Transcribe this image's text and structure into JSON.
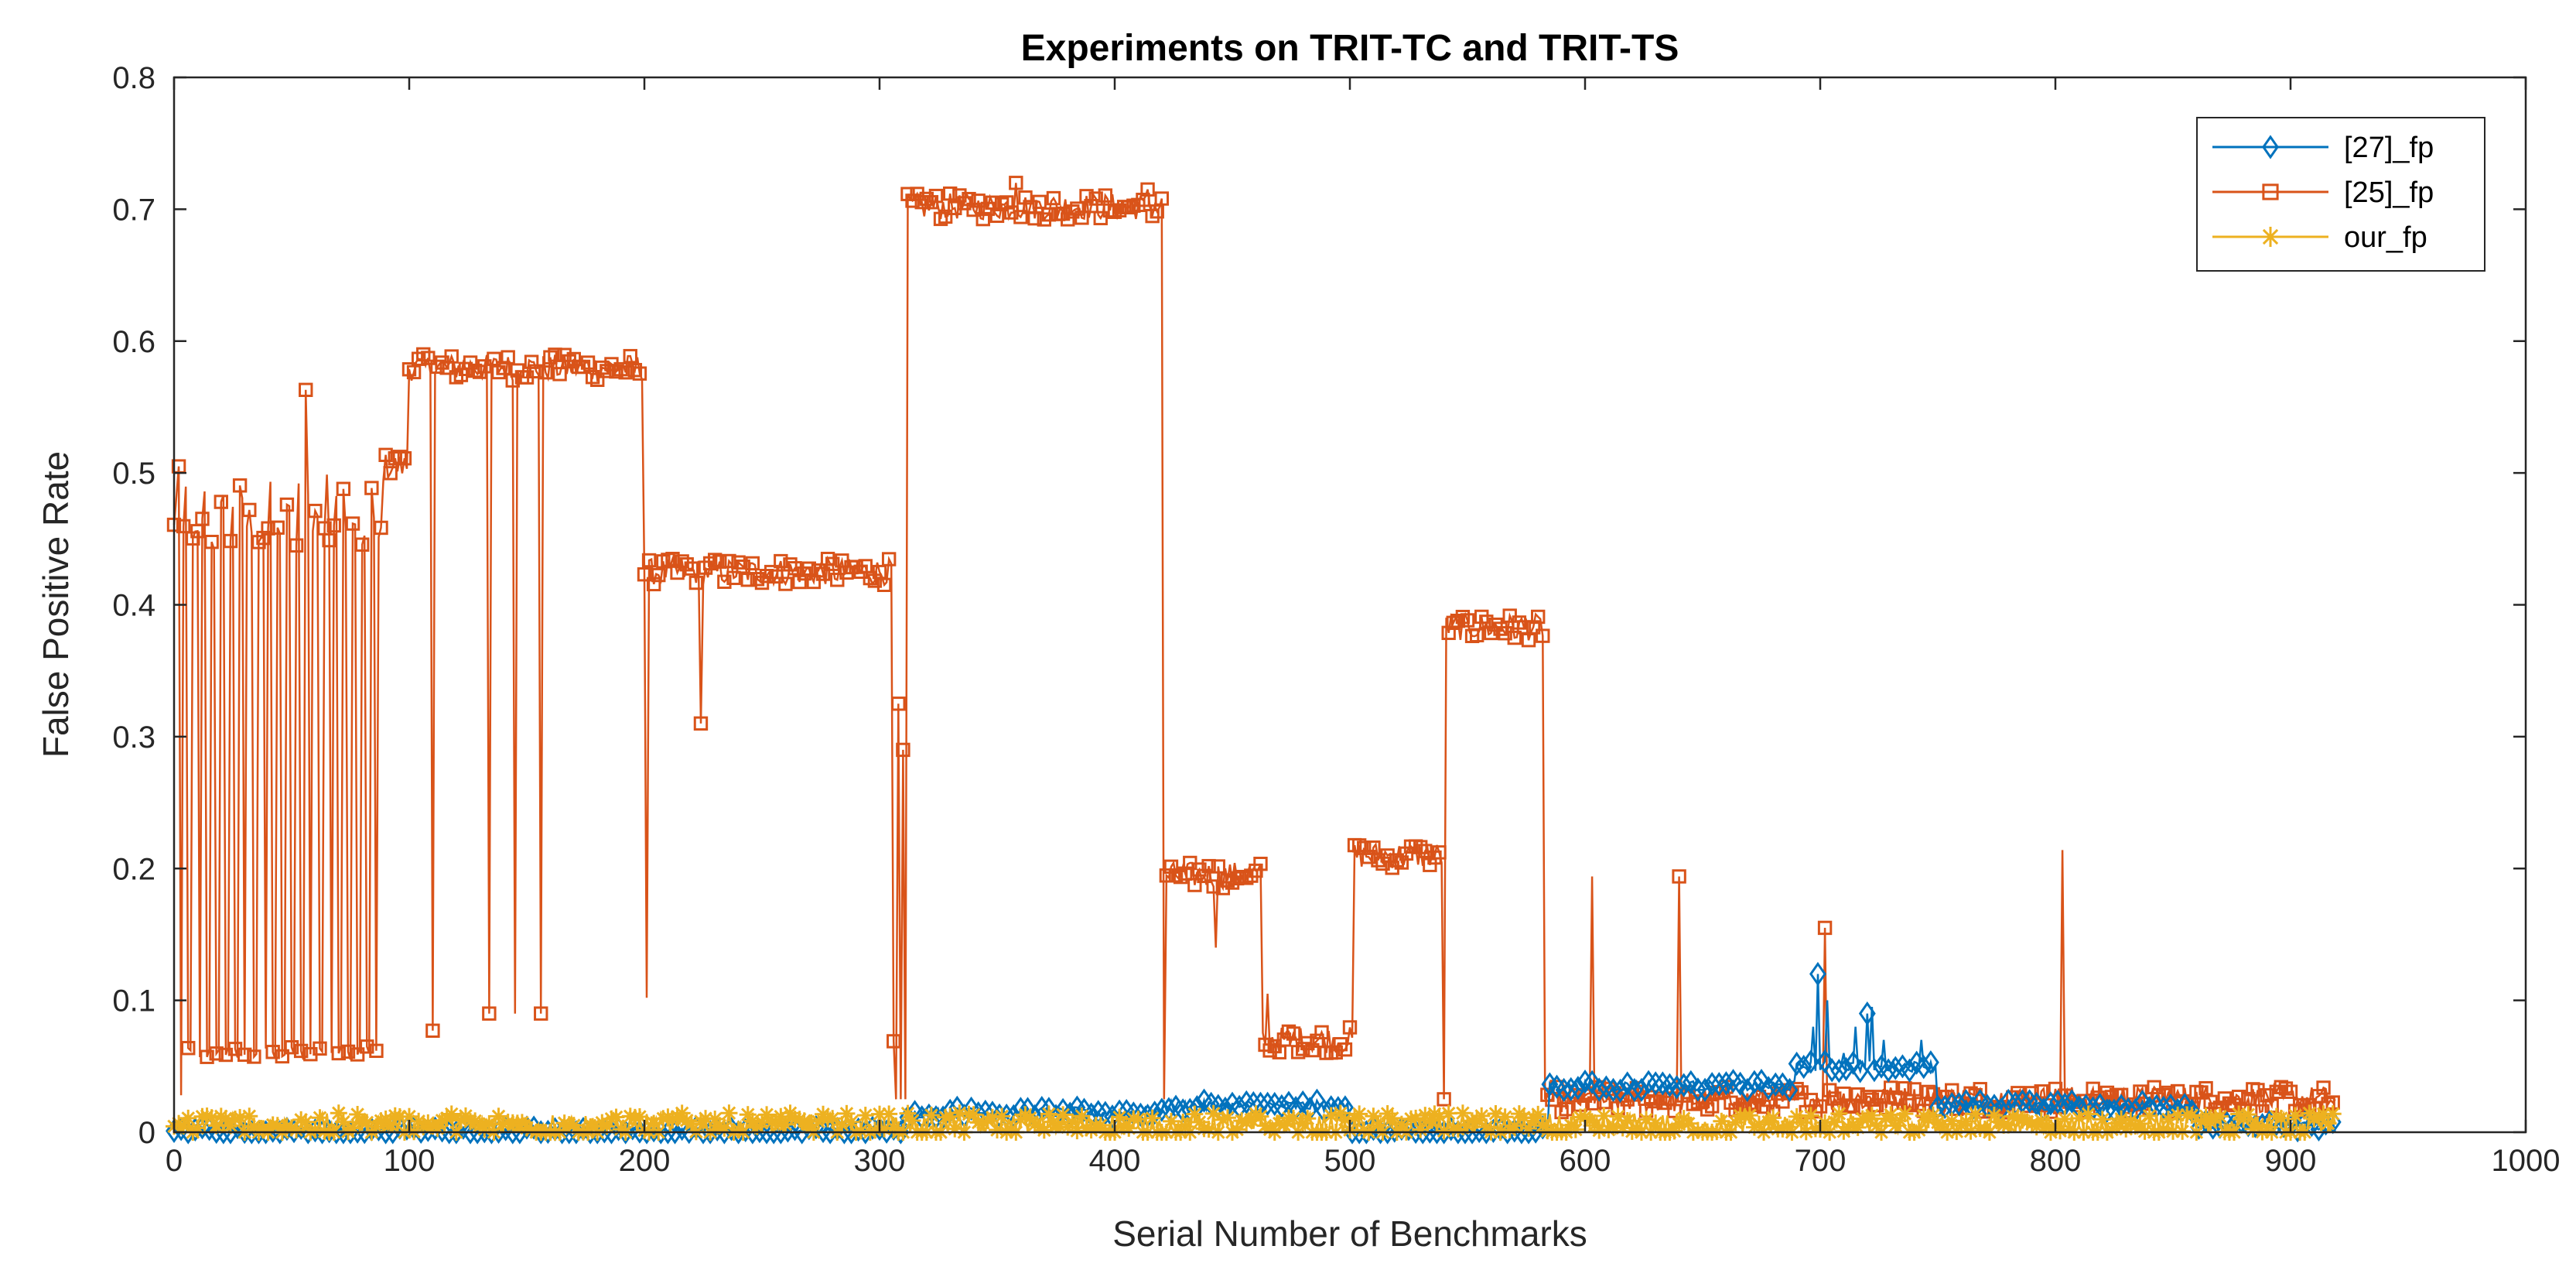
{
  "chart_data": {
    "type": "line",
    "title": "Experiments on TRIT-TC and TRIT-TS",
    "xlabel": "Serial Number of Benchmarks",
    "ylabel": "False Positive Rate",
    "xlim": [
      0,
      1000
    ],
    "ylim": [
      0,
      0.8
    ],
    "xticks": [
      0,
      100,
      200,
      300,
      400,
      500,
      600,
      700,
      800,
      900,
      1000
    ],
    "yticks": [
      0,
      0.1,
      0.2,
      0.3,
      0.4,
      0.5,
      0.6,
      0.7,
      0.8
    ],
    "xtick_labels": [
      "0",
      "100",
      "200",
      "300",
      "400",
      "500",
      "600",
      "700",
      "800",
      "900",
      "1000"
    ],
    "ytick_labels": [
      "0",
      "0.1",
      "0.2",
      "0.3",
      "0.4",
      "0.5",
      "0.6",
      "0.7",
      "0.8"
    ],
    "grid": false,
    "legend_position": "top-right",
    "n_points": 920,
    "series": [
      {
        "name": "[27]_fp",
        "color": "#0072BD",
        "marker": "diamond",
        "baseline_segments": [
          {
            "x_start": 0,
            "x_end": 310,
            "value": 0.0
          },
          {
            "x_start": 310,
            "x_end": 420,
            "value": 0.015
          },
          {
            "x_start": 420,
            "x_end": 500,
            "value": 0.02
          },
          {
            "x_start": 500,
            "x_end": 585,
            "value": 0.0
          },
          {
            "x_start": 585,
            "x_end": 690,
            "value": 0.035
          },
          {
            "x_start": 690,
            "x_end": 750,
            "value": 0.05
          },
          {
            "x_start": 750,
            "x_end": 860,
            "value": 0.02
          },
          {
            "x_start": 860,
            "x_end": 919,
            "value": 0.005
          }
        ],
        "peaks": [
          [
            697,
            0.08
          ],
          [
            699,
            0.12
          ],
          [
            703,
            0.1
          ],
          [
            710,
            0.06
          ],
          [
            715,
            0.08
          ],
          [
            720,
            0.09
          ],
          [
            722,
            0.095
          ],
          [
            727,
            0.07
          ],
          [
            735,
            0.05
          ],
          [
            743,
            0.07
          ]
        ]
      },
      {
        "name": "[25]_fp",
        "color": "#D95319",
        "marker": "square",
        "segments": [
          {
            "x_start": 0,
            "x_end": 90,
            "pattern": "oscillating",
            "high": 0.5,
            "low": 0.055
          },
          {
            "x_start": 90,
            "x_end": 100,
            "value": 0.505
          },
          {
            "x_start": 100,
            "x_end": 200,
            "value": 0.58
          },
          {
            "x_start": 200,
            "x_end": 307,
            "value": 0.425
          },
          {
            "x_start": 312,
            "x_end": 421,
            "value": 0.702
          },
          {
            "x_start": 422,
            "x_end": 463,
            "value": 0.195
          },
          {
            "x_start": 463,
            "x_end": 502,
            "value": 0.07
          },
          {
            "x_start": 502,
            "x_end": 540,
            "value": 0.21
          },
          {
            "x_start": 541,
            "x_end": 583,
            "value": 0.383
          },
          {
            "x_start": 584,
            "x_end": 919,
            "value": 0.025
          }
        ],
        "spikes": [
          [
            2,
            0.505
          ],
          [
            3,
            0.028
          ],
          [
            56,
            0.563
          ],
          [
            110,
            0.077
          ],
          [
            134,
            0.09
          ],
          [
            145,
            0.09
          ],
          [
            156,
            0.09
          ],
          [
            201,
            0.102
          ],
          [
            224,
            0.31
          ],
          [
            306,
            0.069
          ],
          [
            308,
            0.325
          ],
          [
            310,
            0.29
          ],
          [
            358,
            0.72
          ],
          [
            414,
            0.715
          ],
          [
            443,
            0.14
          ],
          [
            465,
            0.105
          ],
          [
            570,
            0.375
          ],
          [
            603,
            0.194
          ],
          [
            640,
            0.194
          ],
          [
            702,
            0.155
          ],
          [
            795,
            0.033
          ],
          [
            803,
            0.214
          ]
        ]
      },
      {
        "name": "our_fp",
        "color": "#EDB120",
        "marker": "asterisk",
        "baseline": 0.005,
        "noise": 0.012
      }
    ]
  }
}
